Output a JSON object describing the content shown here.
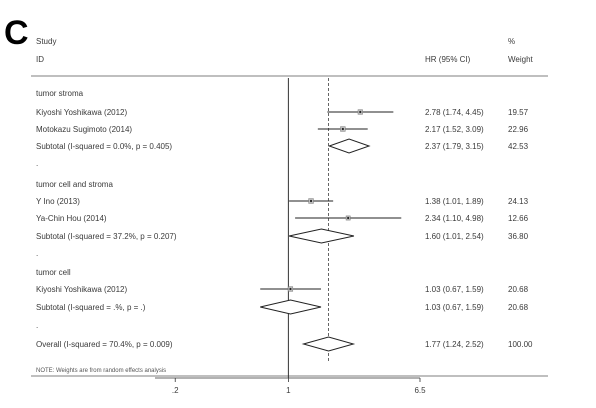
{
  "panel_label": "C",
  "chart_data": {
    "type": "forest",
    "header": {
      "study_line1": "Study",
      "study_line2": "ID",
      "hr_header": "HR (95% CI)",
      "weight_line1": "%",
      "weight_line2": "Weight"
    },
    "xscale": "log",
    "xlim": [
      0.15,
      6.5
    ],
    "xticks": [
      {
        "value": 0.2,
        "label": ".2"
      },
      {
        "value": 1,
        "label": "1"
      },
      {
        "value": 6.5,
        "label": "6.5"
      }
    ],
    "null_line": 1,
    "overall_line": 1.77,
    "rows": [
      {
        "kind": "group",
        "label": "tumor stroma"
      },
      {
        "kind": "study",
        "label": "Kiyoshi Yoshikawa (2012)",
        "hr": 2.78,
        "lo": 1.74,
        "hi": 4.45,
        "ci_text": "2.78 (1.74, 4.45)",
        "weight": 19.57,
        "weight_text": "19.57"
      },
      {
        "kind": "study",
        "label": "Motokazu Sugimoto (2014)",
        "hr": 2.17,
        "lo": 1.52,
        "hi": 3.09,
        "ci_text": "2.17 (1.52, 3.09)",
        "weight": 22.96,
        "weight_text": "22.96"
      },
      {
        "kind": "subtotal",
        "label": "Subtotal  (I-squared = 0.0%, p = 0.405)",
        "hr": 2.37,
        "lo": 1.79,
        "hi": 3.15,
        "ci_text": "2.37 (1.79, 3.15)",
        "weight_text": "42.53"
      },
      {
        "kind": "dot",
        "label": "."
      },
      {
        "kind": "group",
        "label": "tumor cell and stroma"
      },
      {
        "kind": "study",
        "label": "Y Ino (2013)",
        "hr": 1.38,
        "lo": 1.01,
        "hi": 1.89,
        "ci_text": "1.38 (1.01, 1.89)",
        "weight": 24.13,
        "weight_text": "24.13"
      },
      {
        "kind": "study",
        "label": "Ya-Chin Hou (2014)",
        "hr": 2.34,
        "lo": 1.1,
        "hi": 4.98,
        "ci_text": "2.34 (1.10, 4.98)",
        "weight": 12.66,
        "weight_text": "12.66"
      },
      {
        "kind": "subtotal",
        "label": "Subtotal  (I-squared = 37.2%, p = 0.207)",
        "hr": 1.6,
        "lo": 1.01,
        "hi": 2.54,
        "ci_text": "1.60 (1.01, 2.54)",
        "weight_text": "36.80"
      },
      {
        "kind": "dot",
        "label": "."
      },
      {
        "kind": "group",
        "label": "tumor cell"
      },
      {
        "kind": "study",
        "label": "Kiyoshi Yoshikawa (2012)",
        "hr": 1.03,
        "lo": 0.67,
        "hi": 1.59,
        "ci_text": "1.03 (0.67, 1.59)",
        "weight": 20.68,
        "weight_text": "20.68"
      },
      {
        "kind": "subtotal",
        "label": "Subtotal  (I-squared = .%, p = .)",
        "hr": 1.03,
        "lo": 0.67,
        "hi": 1.59,
        "ci_text": "1.03 (0.67, 1.59)",
        "weight_text": "20.68"
      },
      {
        "kind": "dot",
        "label": "."
      },
      {
        "kind": "overall",
        "label": "Overall  (I-squared = 70.4%, p = 0.009)",
        "hr": 1.77,
        "lo": 1.24,
        "hi": 2.52,
        "ci_text": "1.77 (1.24, 2.52)",
        "weight_text": "100.00"
      }
    ],
    "note": "NOTE: Weights are from random effects analysis"
  }
}
